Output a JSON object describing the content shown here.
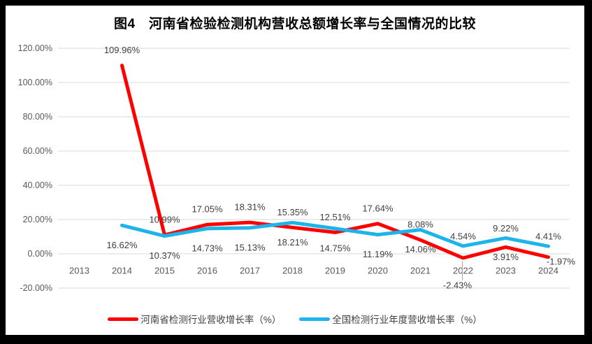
{
  "frame": {
    "matte_color": "#000000",
    "sheet_color": "#ffffff"
  },
  "chart_data": {
    "type": "line",
    "title": "图4　河南省检验检测机构营收总额增长率与全国情况的比较",
    "categories": [
      "2013",
      "2014",
      "2015",
      "2016",
      "2017",
      "2018",
      "2019",
      "2020",
      "2021",
      "2022",
      "2023",
      "2024"
    ],
    "series": [
      {
        "name": "河南省检测行业营收增长率（%）",
        "color": "#fe0000",
        "values": [
          null,
          109.96,
          10.99,
          17.05,
          18.31,
          15.35,
          12.51,
          17.64,
          8.08,
          -2.43,
          3.91,
          -1.97
        ],
        "labels": [
          "",
          "109.96%",
          "10.99%",
          "17.05%",
          "18.31%",
          "15.35%",
          "12.51%",
          "17.64%",
          "8.08%",
          "-2.43%",
          "3.91%",
          "-1.97%"
        ],
        "label_sides": [
          null,
          "above",
          "above",
          "above",
          "above",
          "above",
          "above",
          "above",
          "above",
          "axis-below",
          "below",
          "right"
        ]
      },
      {
        "name": "全国检测行业年度营收增长率（%）",
        "color": "#1cb4eb",
        "values": [
          null,
          16.62,
          10.37,
          14.73,
          15.13,
          18.21,
          14.75,
          11.19,
          14.06,
          4.54,
          9.22,
          4.41
        ],
        "labels": [
          "",
          "16.62%",
          "10.37%",
          "14.73%",
          "15.13%",
          "18.21%",
          "14.75%",
          "11.19%",
          "14.06%",
          "4.54%",
          "9.22%",
          "4.41%"
        ],
        "label_sides": [
          null,
          "below",
          "below",
          "below",
          "below",
          "below",
          "below",
          "below",
          "below",
          "above",
          "above",
          "above"
        ]
      }
    ],
    "y_axis": {
      "min": -20,
      "max": 120,
      "step": 20,
      "tick_labels": [
        "120.00%",
        "100.00%",
        "80.00%",
        "60.00%",
        "40.00%",
        "20.00%",
        "0.00%",
        "-20.00%"
      ]
    },
    "x_axis_label_row": "below zero line",
    "grid": true,
    "legend_position": "bottom"
  }
}
